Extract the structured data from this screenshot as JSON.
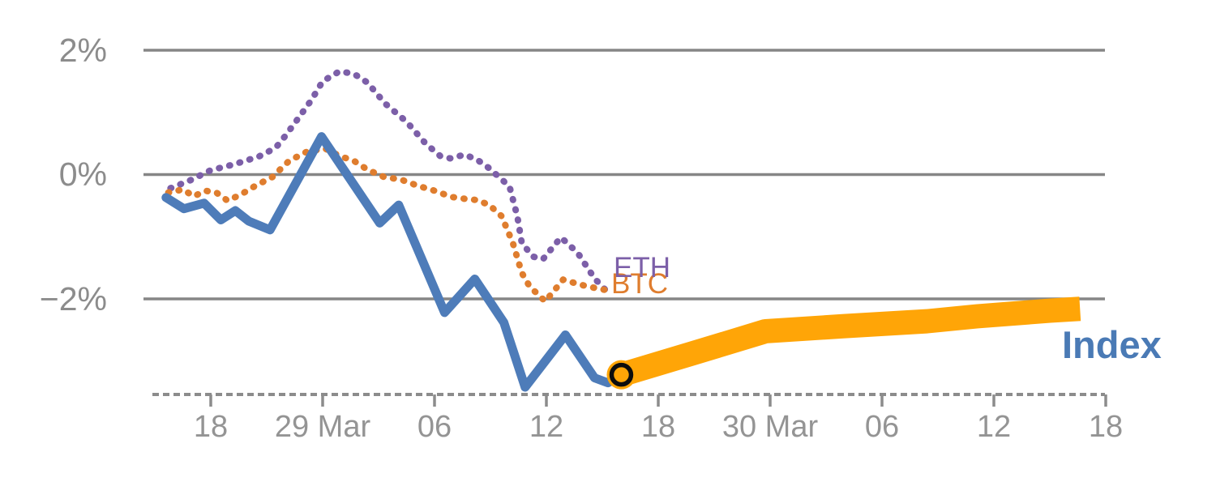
{
  "chart_data": {
    "type": "line",
    "title": "",
    "description": "Relative performance (%) of ETH, BTC and a crypto Index, with an orange forecast band for the Index starting at a circled marker",
    "y_axis": {
      "unit": "%",
      "range": [
        -3.6,
        2.8
      ],
      "grid": true,
      "ticks": [
        {
          "label": "2%",
          "value": 2
        },
        {
          "label": "0%",
          "value": 0
        },
        {
          "label": "−2%",
          "value": -2
        }
      ]
    },
    "x_axis": {
      "x_unit": "tick index (1–9, uniform spacing)",
      "ticks": [
        "18",
        "29 Mar",
        "06",
        "12",
        "18",
        "30 Mar",
        "06",
        "12",
        "18"
      ]
    },
    "series": [
      {
        "name": "ETH",
        "color": "#7c5fa8",
        "style": "dotted",
        "points": [
          [
            0.64,
            -0.22
          ],
          [
            0.82,
            -0.09
          ],
          [
            1.0,
            0.07
          ],
          [
            1.2,
            0.16
          ],
          [
            1.43,
            0.29
          ],
          [
            1.58,
            0.43
          ],
          [
            1.67,
            0.63
          ],
          [
            1.78,
            0.9
          ],
          [
            1.9,
            1.2
          ],
          [
            2.0,
            1.5
          ],
          [
            2.15,
            1.66
          ],
          [
            2.28,
            1.62
          ],
          [
            2.4,
            1.48
          ],
          [
            2.56,
            1.14
          ],
          [
            2.75,
            0.85
          ],
          [
            2.92,
            0.5
          ],
          [
            3.05,
            0.3
          ],
          [
            3.14,
            0.26
          ],
          [
            3.27,
            0.32
          ],
          [
            3.38,
            0.24
          ],
          [
            3.49,
            0.1
          ],
          [
            3.57,
            -0.03
          ],
          [
            3.67,
            -0.19
          ],
          [
            3.74,
            -0.67
          ],
          [
            3.78,
            -1.1
          ],
          [
            3.88,
            -1.32
          ],
          [
            3.97,
            -1.36
          ],
          [
            4.13,
            -1.01
          ],
          [
            4.28,
            -1.26
          ],
          [
            4.43,
            -1.67
          ],
          [
            4.53,
            -1.86
          ]
        ]
      },
      {
        "name": "BTC",
        "color": "#df7d2e",
        "style": "dotted",
        "points": [
          [
            0.62,
            -0.29
          ],
          [
            0.75,
            -0.24
          ],
          [
            0.85,
            -0.35
          ],
          [
            0.95,
            -0.26
          ],
          [
            1.05,
            -0.29
          ],
          [
            1.15,
            -0.42
          ],
          [
            1.27,
            -0.32
          ],
          [
            1.4,
            -0.18
          ],
          [
            1.55,
            -0.04
          ],
          [
            1.7,
            0.22
          ],
          [
            1.85,
            0.36
          ],
          [
            2.02,
            0.42
          ],
          [
            2.15,
            0.3
          ],
          [
            2.28,
            0.22
          ],
          [
            2.4,
            0.08
          ],
          [
            2.55,
            -0.04
          ],
          [
            2.7,
            -0.08
          ],
          [
            2.85,
            -0.18
          ],
          [
            3.0,
            -0.26
          ],
          [
            3.15,
            -0.36
          ],
          [
            3.27,
            -0.39
          ],
          [
            3.38,
            -0.41
          ],
          [
            3.49,
            -0.49
          ],
          [
            3.6,
            -0.67
          ],
          [
            3.7,
            -1.1
          ],
          [
            3.78,
            -1.58
          ],
          [
            3.85,
            -1.8
          ],
          [
            3.99,
            -2.04
          ],
          [
            4.15,
            -1.69
          ],
          [
            4.3,
            -1.77
          ],
          [
            4.45,
            -1.83
          ],
          [
            4.57,
            -1.87
          ]
        ]
      },
      {
        "name": "Index",
        "color": "#4e7cb9",
        "style": "solid",
        "points": [
          [
            0.6,
            -0.37
          ],
          [
            0.76,
            -0.55
          ],
          [
            0.94,
            -0.46
          ],
          [
            1.09,
            -0.73
          ],
          [
            1.22,
            -0.58
          ],
          [
            1.34,
            -0.75
          ],
          [
            1.53,
            -0.89
          ],
          [
            1.99,
            0.61
          ],
          [
            2.51,
            -0.78
          ],
          [
            2.68,
            -0.49
          ],
          [
            3.09,
            -2.22
          ],
          [
            3.36,
            -1.68
          ],
          [
            3.62,
            -2.38
          ],
          [
            3.81,
            -3.42
          ],
          [
            4.17,
            -2.58
          ],
          [
            4.43,
            -3.27
          ],
          [
            4.55,
            -3.35
          ],
          [
            4.67,
            -3.22
          ]
        ]
      },
      {
        "name": "Index forecast",
        "color": "#ffa507",
        "style": "band",
        "points": [
          [
            4.67,
            -3.22
          ],
          [
            5.3,
            -2.88
          ],
          [
            5.96,
            -2.52
          ],
          [
            6.65,
            -2.44
          ],
          [
            7.4,
            -2.36
          ],
          [
            7.85,
            -2.28
          ],
          [
            8.5,
            -2.19
          ],
          [
            8.77,
            -2.16
          ]
        ]
      }
    ],
    "marker": {
      "x": 4.67,
      "y": -3.22,
      "shape": "ring",
      "fill_color": "#ffa507",
      "ring_color": "#0d0d0d",
      "meaning": "forecast start point"
    },
    "legend_position": "inline labels at line ends",
    "colors": {
      "gridline": "#868686",
      "axis_line": "#8c8c8c",
      "tick_text": "#949494",
      "index_label_text": "#4a7ab5"
    }
  }
}
